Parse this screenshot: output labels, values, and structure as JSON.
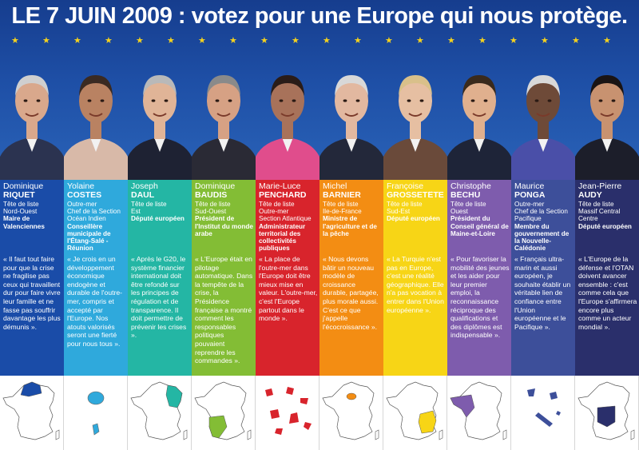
{
  "header": {
    "title": "LE 7 JUIN 2009 : votez pour une Europe qui nous protège."
  },
  "colors": {
    "header_bg": "#1e4fa6",
    "star": "#f4d21f",
    "columns": [
      "#1a4ca8",
      "#2fa9dc",
      "#24b6a4",
      "#83bd35",
      "#d8242c",
      "#f38d13",
      "#f7d516",
      "#7e5cad",
      "#3d4f9a",
      "#2a2f6b"
    ]
  },
  "candidates": [
    {
      "first": "Dominique",
      "last": "RIQUET",
      "role": [
        "Tête de liste",
        "Nord-Ouest"
      ],
      "extra": "Maire de Valenciennes",
      "quote": "« Il faut tout faire pour que la crise ne fragilise pas ceux qui travaillent dur pour faire vivre leur famille et ne fasse pas souffrir davantage les plus démunis ».",
      "map_icon": "map-nord-ouest"
    },
    {
      "first": "Yolaine",
      "last": "COSTES",
      "role": [
        "Outre-mer",
        "Chef de la Section",
        "Océan Indien"
      ],
      "extra": "Conseillère municipale de l'Étang-Salé - Réunion",
      "quote": "« Je crois en un développement économique endogène et durable de l'outre-mer, compris et accepté par l'Europe. Nos atouts valorisés seront une fierté pour nous tous ».",
      "map_icon": "map-reunion"
    },
    {
      "first": "Joseph",
      "last": "DAUL",
      "role": [
        "Tête de liste",
        "Est"
      ],
      "extra": "Député européen",
      "quote": "« Après le G20, le système financier international doit être refondé sur les principes de régulation et de transparence. Il doit permettre de prévenir les crises ».",
      "map_icon": "map-est"
    },
    {
      "first": "Dominique",
      "last": "BAUDIS",
      "role": [
        "Tête de liste",
        "Sud-Ouest"
      ],
      "extra": "Président de l'Institut du monde arabe",
      "quote": "« L'Europe était en pilotage automatique. Dans la tempête de la crise, la Présidence française a montré comment les responsables politiques pouvaient reprendre les commandes ».",
      "map_icon": "map-sud-ouest"
    },
    {
      "first": "Marie-Luce",
      "last": "PENCHARD",
      "role": [
        "Tête de liste",
        "Outre-mer",
        "Section Atlantique"
      ],
      "extra": "Administrateur territorial des collectivités publiques",
      "quote": "« La place de l'outre-mer dans l'Europe doit être mieux mise en valeur. L'outre-mer, c'est l'Europe partout dans le monde ».",
      "map_icon": "map-atlantique"
    },
    {
      "first": "Michel",
      "last": "BARNIER",
      "role": [
        "Tête de liste",
        "Ile-de-France"
      ],
      "extra": "Ministre de l'agriculture et de la pêche",
      "quote": "« Nous devons bâtir un nouveau modèle de croissance durable, partagée, plus morale aussi. C'est ce que j'appelle l'écocroissance ».",
      "map_icon": "map-ile-de-france"
    },
    {
      "first": "Françoise",
      "last": "GROSSETÊTE",
      "role": [
        "Tête de liste",
        "Sud-Est"
      ],
      "extra": "Député européen",
      "quote": "« La Turquie n'est pas en Europe, c'est une réalité géographique. Elle n'a pas vocation à entrer dans l'Union européenne ».",
      "map_icon": "map-sud-est"
    },
    {
      "first": "Christophe",
      "last": "BÉCHU",
      "role": [
        "Tête de liste",
        "Ouest"
      ],
      "extra": "Président du Conseil général de Maine-et-Loire",
      "quote": "« Pour favoriser la mobilité des jeunes et les aider pour leur premier emploi, la reconnaissance réciproque des qualifications et des diplômes est indispensable ».",
      "map_icon": "map-ouest"
    },
    {
      "first": "Maurice",
      "last": "PONGA",
      "role": [
        "Outre-mer",
        "Chef de la Section",
        "Pacifique"
      ],
      "extra": "Membre du gouvernement de la Nouvelle-Calédonie",
      "quote": "« Français ultra-marin et aussi européen, je souhaite établir un véritable lien de confiance entre l'Union européenne et le Pacifique ».",
      "map_icon": "map-pacifique"
    },
    {
      "first": "Jean-Pierre",
      "last": "AUDY",
      "role": [
        "Tête de liste",
        "Massif Central",
        "Centre"
      ],
      "extra": "Député européen",
      "quote": "« L'Europe de la défense et l'OTAN doivent avancer ensemble : c'est comme cela que l'Europe s'affirmera encore plus comme un acteur mondial ».",
      "map_icon": "map-massif-central"
    }
  ]
}
